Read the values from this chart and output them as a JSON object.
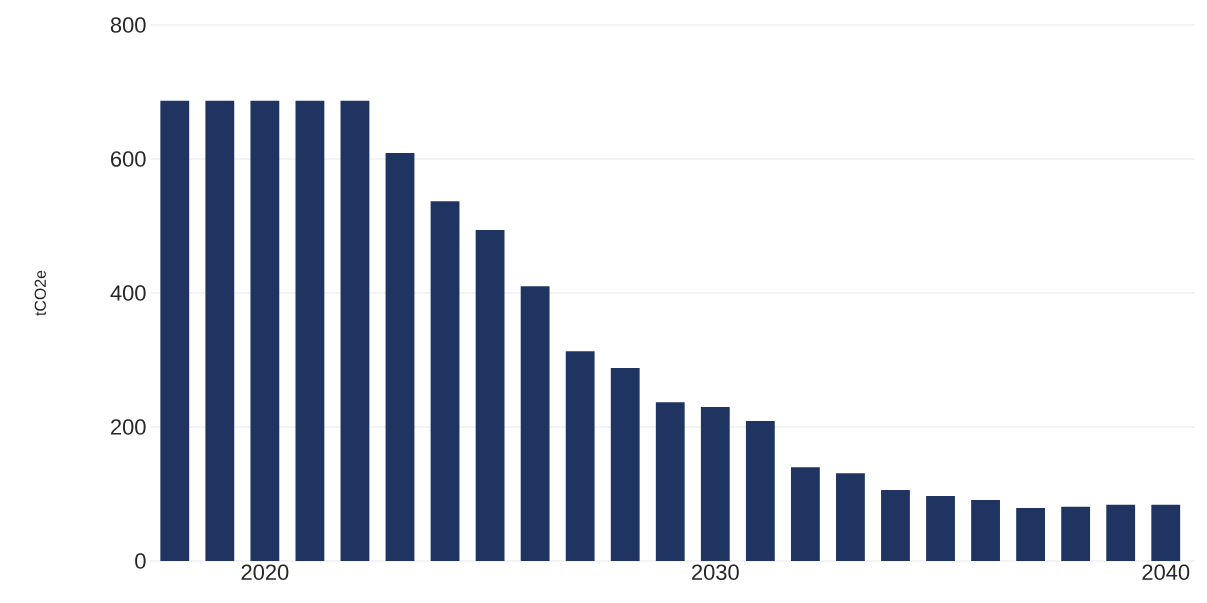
{
  "chart_data": {
    "type": "bar",
    "ylabel": "tCO2e",
    "x": [
      2018,
      2019,
      2020,
      2021,
      2022,
      2023,
      2024,
      2025,
      2026,
      2027,
      2028,
      2029,
      2030,
      2031,
      2032,
      2033,
      2034,
      2035,
      2036,
      2037,
      2038,
      2039,
      2040
    ],
    "values": [
      687,
      687,
      687,
      687,
      687,
      609,
      537,
      494,
      410,
      313,
      288,
      237,
      230,
      209,
      140,
      131,
      106,
      97,
      91,
      79,
      81,
      84,
      84
    ],
    "color": "#1f3461",
    "xlim": [
      2017.45,
      2040.65
    ],
    "xticks": [
      2020,
      2030,
      2040
    ],
    "ylim": [
      0,
      800
    ],
    "yticks": [
      0,
      200,
      400,
      600,
      800
    ],
    "grid": "y"
  }
}
